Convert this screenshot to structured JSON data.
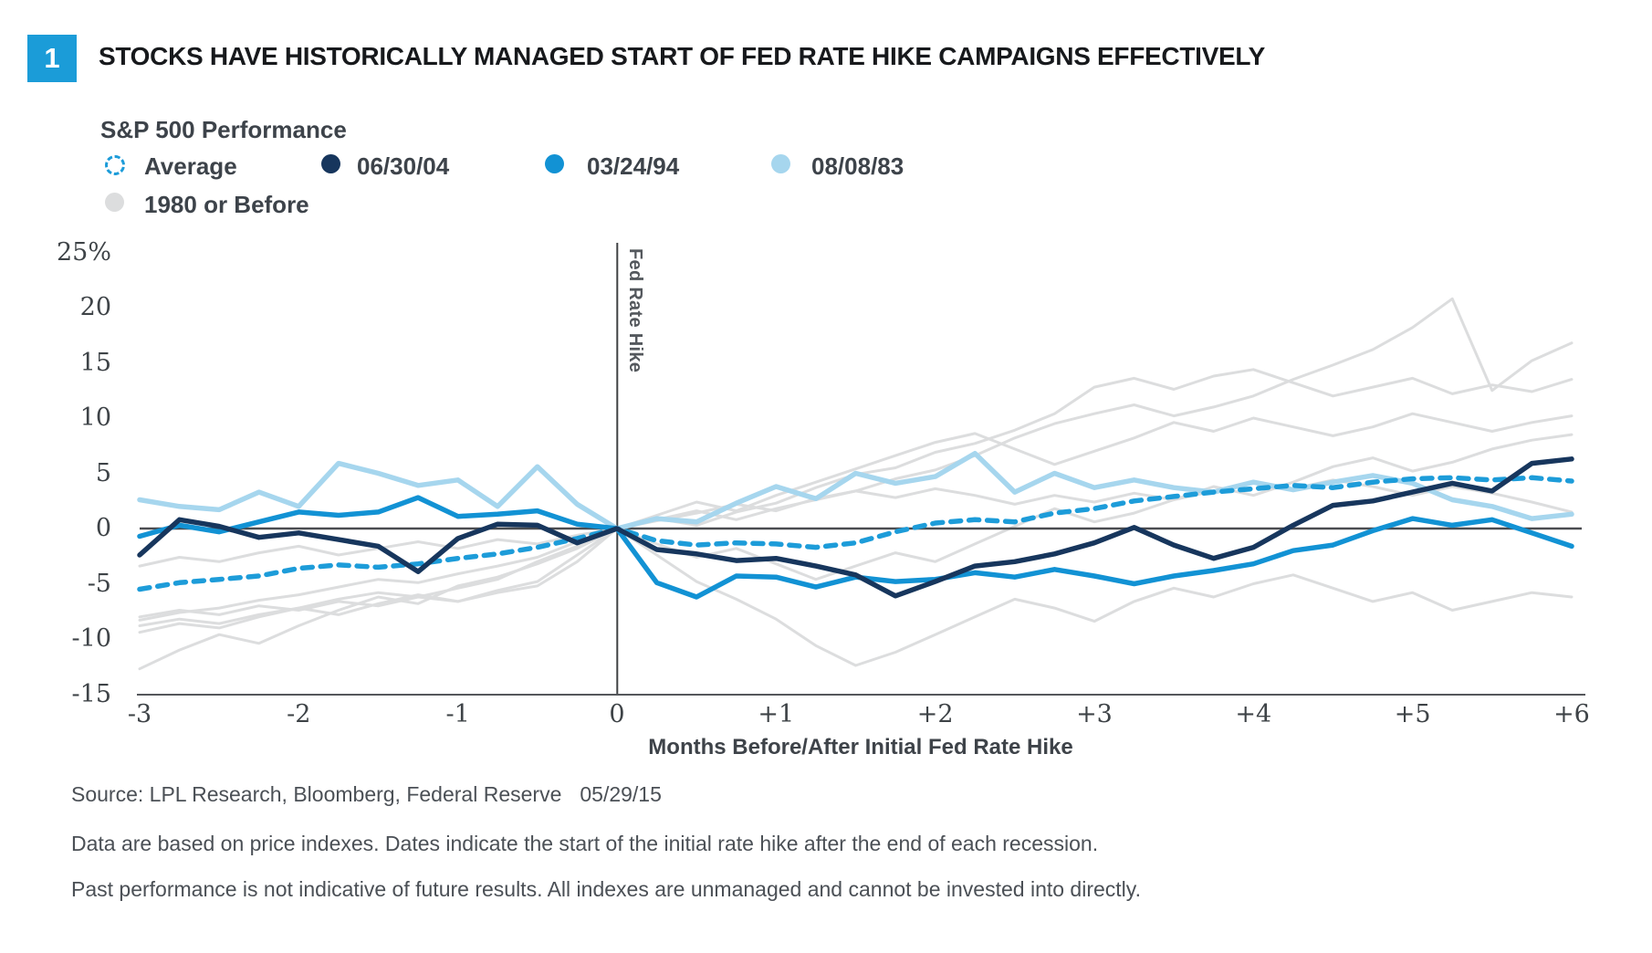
{
  "header": {
    "figure_number": "1",
    "title": "STOCKS HAVE HISTORICALLY MANAGED START OF FED RATE HIKE CAMPAIGNS EFFECTIVELY",
    "figure_box_color": "#1b9cd8"
  },
  "legend": {
    "subtitle": "S&P 500 Performance",
    "items": [
      {
        "label": "Average",
        "color": "#1d9cd9",
        "marker": "dashed-circle"
      },
      {
        "label": "06/30/04",
        "color": "#17365d",
        "marker": "dot"
      },
      {
        "label": "03/24/94",
        "color": "#1292d4",
        "marker": "dot"
      },
      {
        "label": "08/08/83",
        "color": "#a6d6ee",
        "marker": "dot"
      },
      {
        "label": "1980 or Before",
        "color": "#dcddde",
        "marker": "dot"
      }
    ]
  },
  "chart_data": {
    "type": "line",
    "title": "S&P 500 Performance around initial Fed rate hikes",
    "xlabel": "Months Before/After Initial Fed Rate Hike",
    "ylabel": "",
    "annotation": "Fed Rate Hike",
    "xlim": [
      -3,
      6
    ],
    "ylim": [
      -15,
      25
    ],
    "grid": false,
    "legend_position": "top-left",
    "axis_color": "#4a4c50",
    "x_ticks": [
      {
        "label": "-3",
        "value": -3
      },
      {
        "label": "-2",
        "value": -2
      },
      {
        "label": "-1",
        "value": -1
      },
      {
        "label": "0",
        "value": 0
      },
      {
        "label": "+1",
        "value": 1
      },
      {
        "label": "+2",
        "value": 2
      },
      {
        "label": "+3",
        "value": 3
      },
      {
        "label": "+4",
        "value": 4
      },
      {
        "label": "+5",
        "value": 5
      },
      {
        "label": "+6",
        "value": 6
      }
    ],
    "y_ticks": [
      {
        "label": "25%",
        "value": 25
      },
      {
        "label": "20",
        "value": 20
      },
      {
        "label": "15",
        "value": 15
      },
      {
        "label": "10",
        "value": 10
      },
      {
        "label": "5",
        "value": 5
      },
      {
        "label": "0",
        "value": 0
      },
      {
        "label": "-5",
        "value": -5
      },
      {
        "label": "-10",
        "value": -10
      },
      {
        "label": "-15",
        "value": -15
      }
    ],
    "x": [
      -3,
      -2.75,
      -2.5,
      -2.25,
      -2,
      -1.75,
      -1.5,
      -1.25,
      -1,
      -0.75,
      -0.5,
      -0.25,
      0,
      0.25,
      0.5,
      0.75,
      1,
      1.25,
      1.5,
      1.75,
      2,
      2.25,
      2.5,
      2.75,
      3,
      3.25,
      3.5,
      3.75,
      4,
      4.25,
      4.5,
      4.75,
      5,
      5.25,
      5.5,
      5.75,
      6
    ],
    "series": [
      {
        "name": "1980 or Before",
        "color": "#dcddde",
        "width": 3,
        "dashed": false,
        "values": [
          -8.3,
          -7.6,
          -7.2,
          -6.5,
          -6,
          -5.3,
          -4.6,
          -4.9,
          -4.1,
          -3.4,
          -2.6,
          -1.2,
          0,
          0.7,
          1.4,
          2.2,
          1.6,
          2.7,
          3.4,
          4.5,
          5.3,
          6.6,
          8.2,
          9.5,
          10.4,
          11.2,
          10.2,
          11,
          12,
          13.5,
          14.8,
          16.2,
          18.2,
          20.8,
          12.5,
          15.2,
          16.8
        ]
      },
      {
        "name": "1980 or Before",
        "color": "#dcddde",
        "width": 3,
        "dashed": false,
        "values": [
          -8.8,
          -8.2,
          -8.6,
          -7.8,
          -7.2,
          -6.4,
          -5.8,
          -6.2,
          -5.4,
          -4.6,
          -3,
          -1.6,
          0,
          0.9,
          0.3,
          1.5,
          2.3,
          3.7,
          4.9,
          5.5,
          6.9,
          7.7,
          8.9,
          10.4,
          12.8,
          13.6,
          12.6,
          13.8,
          14.4,
          13.2,
          12,
          12.8,
          13.6,
          12.2,
          13,
          12.4,
          13.5
        ]
      },
      {
        "name": "1980 or Before",
        "color": "#dcddde",
        "width": 3,
        "dashed": false,
        "values": [
          -12.7,
          -11,
          -9.6,
          -10.4,
          -8.8,
          -7.4,
          -6.2,
          -6.8,
          -5.2,
          -4.4,
          -3.2,
          -1.8,
          0,
          -1.4,
          -2.6,
          -1.8,
          -3.2,
          -4.6,
          -3.4,
          -2.2,
          -3,
          -1.4,
          0.2,
          1.8,
          0.6,
          1.4,
          2.6,
          3.8,
          3,
          4.2,
          5.6,
          6.4,
          5.2,
          6,
          7.2,
          8,
          8.5
        ]
      },
      {
        "name": "1980 or Before",
        "color": "#dcddde",
        "width": 3,
        "dashed": false,
        "values": [
          -8,
          -7.4,
          -7.8,
          -7,
          -7.4,
          -6.6,
          -7,
          -6.2,
          -6.6,
          -5.8,
          -5.2,
          -3,
          0,
          -2.4,
          -4.8,
          -6.4,
          -8.2,
          -10.6,
          -12.4,
          -11.2,
          -9.6,
          -8,
          -6.4,
          -7.2,
          -8.4,
          -6.6,
          -5.4,
          -6.2,
          -5,
          -4.2,
          -5.4,
          -6.6,
          -5.8,
          -7.4,
          -6.6,
          -5.8,
          -6.2
        ]
      },
      {
        "name": "1980 or Before",
        "color": "#dcddde",
        "width": 3,
        "dashed": false,
        "values": [
          -3.4,
          -2.6,
          -3,
          -2.2,
          -1.6,
          -2.4,
          -1.8,
          -1.2,
          -1.8,
          -1,
          -1.4,
          -0.6,
          0,
          0.8,
          1.6,
          0.8,
          1.8,
          2.6,
          3.4,
          2.8,
          3.6,
          3,
          2.2,
          3,
          2.4,
          3.2,
          2.6,
          3.4,
          4.2,
          3.6,
          4.4,
          3.8,
          3,
          3.8,
          3.2,
          2.4,
          1.5
        ]
      },
      {
        "name": "1980 or Before",
        "color": "#dcddde",
        "width": 3,
        "dashed": false,
        "values": [
          -9.4,
          -8.6,
          -9,
          -8,
          -7.2,
          -7.8,
          -6.8,
          -6,
          -6.6,
          -5.6,
          -4.8,
          -2.4,
          0,
          1.2,
          2.4,
          1.6,
          3,
          4.2,
          5.4,
          6.6,
          7.8,
          8.6,
          7.2,
          5.8,
          7,
          8.2,
          9.6,
          8.8,
          10,
          9.2,
          8.4,
          9.2,
          10.4,
          9.6,
          8.8,
          9.6,
          10.2
        ]
      },
      {
        "name": "08/08/83",
        "color": "#a6d6ee",
        "width": 5.5,
        "dashed": false,
        "values": [
          2.6,
          2,
          1.7,
          3.3,
          2,
          5.9,
          5,
          3.9,
          4.4,
          2,
          5.6,
          2.2,
          0,
          0.9,
          0.6,
          2.3,
          3.8,
          2.7,
          5,
          4.1,
          4.7,
          6.8,
          3.3,
          5,
          3.7,
          4.4,
          3.7,
          3.3,
          4.2,
          3.5,
          4.2,
          4.8,
          4.1,
          2.6,
          2,
          0.9,
          1.3
        ]
      },
      {
        "name": "03/24/94",
        "color": "#1292d4",
        "width": 5.5,
        "dashed": false,
        "values": [
          -0.7,
          0.3,
          -0.3,
          0.6,
          1.5,
          1.2,
          1.5,
          2.8,
          1.1,
          1.3,
          1.6,
          0.4,
          0,
          -4.9,
          -6.2,
          -4.3,
          -4.4,
          -5.3,
          -4.4,
          -4.8,
          -4.6,
          -4,
          -4.4,
          -3.7,
          -4.3,
          -5,
          -4.3,
          -3.8,
          -3.2,
          -2,
          -1.5,
          -0.2,
          0.9,
          0.3,
          0.8,
          -0.4,
          -1.6
        ]
      },
      {
        "name": "Average",
        "color": "#1d9cd9",
        "width": 5.5,
        "dashed": true,
        "values": [
          -5.5,
          -4.9,
          -4.6,
          -4.3,
          -3.6,
          -3.3,
          -3.5,
          -3.2,
          -2.7,
          -2.3,
          -1.7,
          -0.9,
          0,
          -1.1,
          -1.5,
          -1.3,
          -1.4,
          -1.7,
          -1.3,
          -0.3,
          0.5,
          0.8,
          0.6,
          1.4,
          1.8,
          2.5,
          2.9,
          3.3,
          3.6,
          3.9,
          3.7,
          4.2,
          4.5,
          4.6,
          4.4,
          4.6,
          4.3
        ]
      },
      {
        "name": "06/30/04",
        "color": "#17365d",
        "width": 5.5,
        "dashed": false,
        "values": [
          -2.4,
          0.8,
          0.2,
          -0.8,
          -0.4,
          -1,
          -1.6,
          -3.9,
          -0.9,
          0.4,
          0.3,
          -1.3,
          0,
          -1.9,
          -2.3,
          -2.9,
          -2.7,
          -3.4,
          -4.2,
          -6.1,
          -4.8,
          -3.4,
          -3,
          -2.3,
          -1.3,
          0.1,
          -1.5,
          -2.7,
          -1.7,
          0.3,
          2.1,
          2.5,
          3.3,
          4.1,
          3.4,
          5.9,
          6.3
        ]
      }
    ]
  },
  "footer": {
    "source": "Source: LPL Research, Bloomberg, Federal Reserve",
    "source_date": "05/29/15",
    "note1": "Data are based on price indexes. Dates indicate the start of the initial rate hike after the end of each recession.",
    "note2": "Past performance is not indicative of future results. All indexes are unmanaged and cannot be invested into directly."
  }
}
